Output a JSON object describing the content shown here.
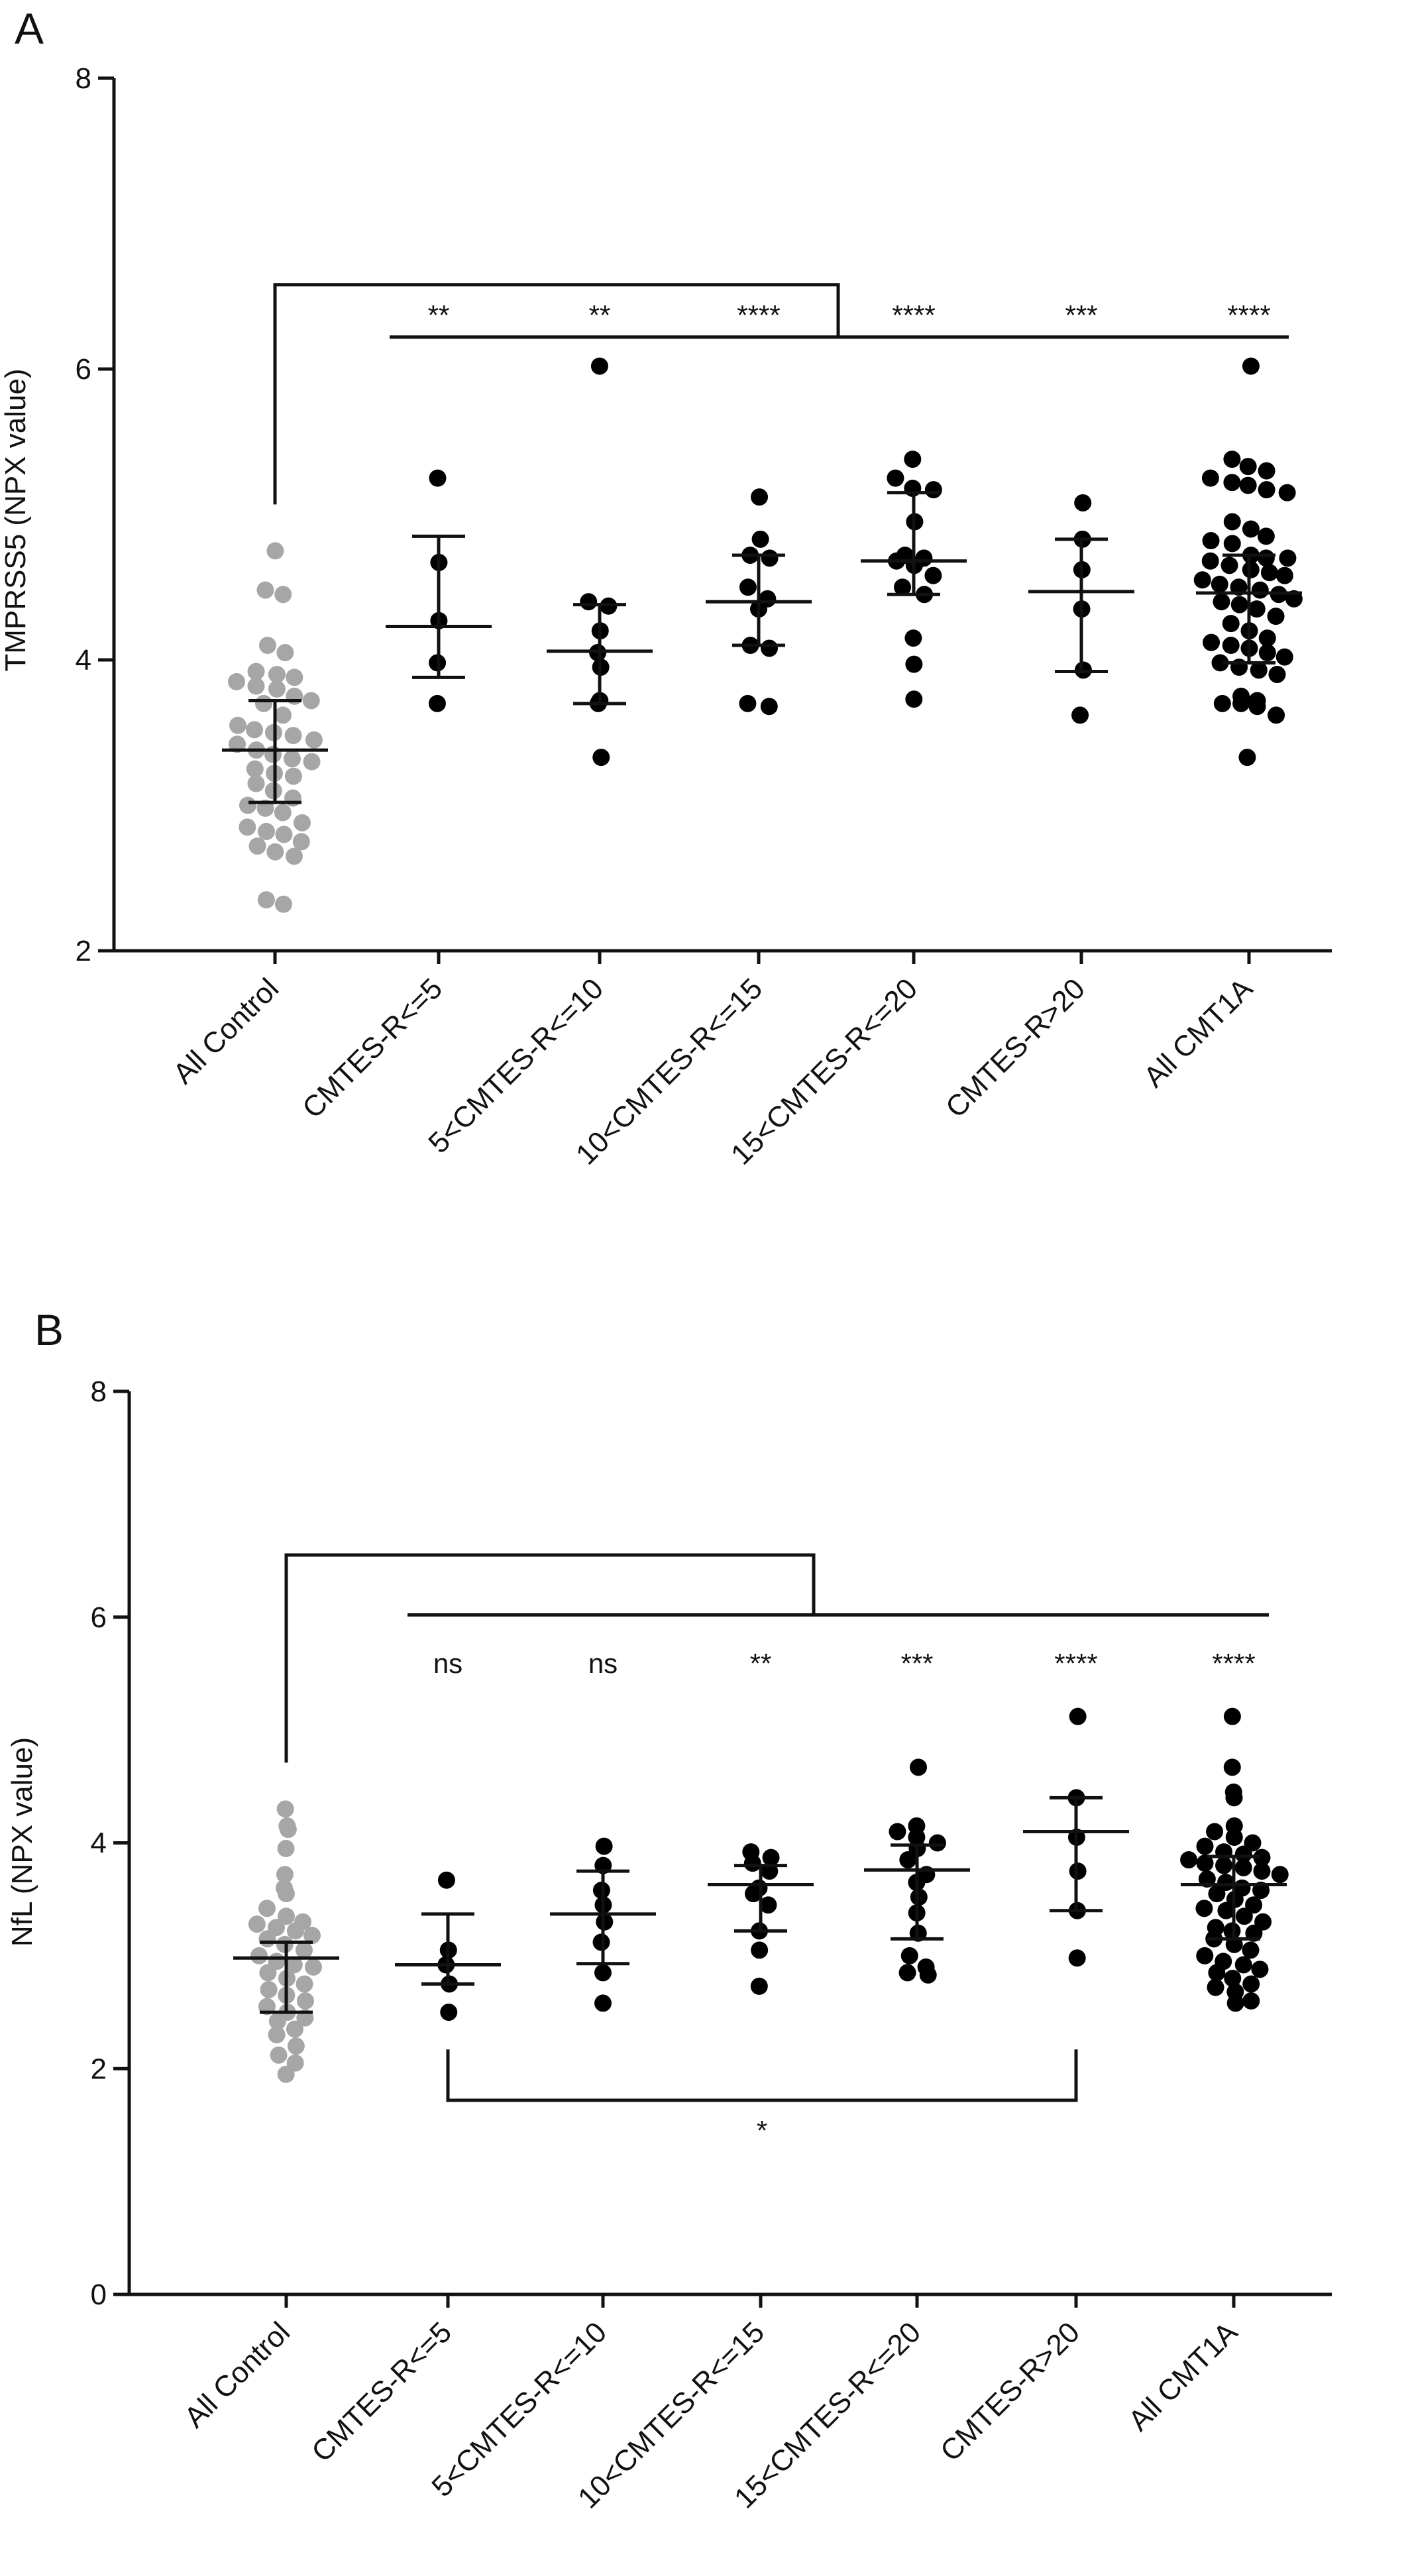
{
  "chart_data": [
    {
      "panel": "A",
      "type": "scatter",
      "ylabel": "TMPRSS5 (NPX value)",
      "ylim": [
        2,
        8
      ],
      "yticks": [
        2,
        4,
        6,
        8
      ],
      "categories": [
        "All Control",
        "CMTES-R<=5",
        "5<CMTES-R<=10",
        "10<CMTES-R<=15",
        "15<CMTES-R<=20",
        "CMTES-R>20",
        "All CMT1A"
      ],
      "colors": [
        "#a6a6a6",
        "#000000",
        "#000000",
        "#000000",
        "#000000",
        "#000000",
        "#000000"
      ],
      "groups": [
        {
          "points": [
            4.75,
            4.48,
            4.45,
            4.1,
            4.05,
            3.92,
            3.9,
            3.88,
            3.85,
            3.82,
            3.8,
            3.75,
            3.72,
            3.7,
            3.62,
            3.55,
            3.52,
            3.5,
            3.48,
            3.45,
            3.42,
            3.38,
            3.35,
            3.32,
            3.3,
            3.25,
            3.22,
            3.2,
            3.15,
            3.1,
            3.05,
            3.0,
            2.98,
            2.95,
            2.88,
            2.85,
            2.82,
            2.8,
            2.75,
            2.72,
            2.68,
            2.65,
            2.35,
            2.32
          ],
          "median": 3.38,
          "q1": 3.02,
          "q3": 3.72
        },
        {
          "points": [
            5.25,
            4.67,
            4.27,
            3.98,
            3.7
          ],
          "median": 4.23,
          "q1": 3.88,
          "q3": 4.85
        },
        {
          "points": [
            6.02,
            4.4,
            4.37,
            4.2,
            4.05,
            3.95,
            3.72,
            3.7,
            3.33
          ],
          "median": 4.06,
          "q1": 3.7,
          "q3": 4.38
        },
        {
          "points": [
            5.12,
            4.83,
            4.72,
            4.7,
            4.5,
            4.42,
            4.35,
            4.1,
            4.08,
            3.7,
            3.68
          ],
          "median": 4.4,
          "q1": 4.1,
          "q3": 4.72
        },
        {
          "points": [
            5.38,
            5.25,
            5.18,
            5.17,
            4.95,
            4.72,
            4.7,
            4.68,
            4.65,
            4.58,
            4.5,
            4.45,
            4.15,
            3.97,
            3.73
          ],
          "median": 4.68,
          "q1": 4.45,
          "q3": 5.15
        },
        {
          "points": [
            5.08,
            4.83,
            4.62,
            4.35,
            3.93,
            3.62
          ],
          "median": 4.47,
          "q1": 3.92,
          "q3": 4.83
        },
        {
          "points": [
            6.02,
            5.38,
            5.33,
            5.3,
            5.25,
            5.22,
            5.2,
            5.17,
            5.15,
            4.95,
            4.9,
            4.85,
            4.82,
            4.8,
            4.72,
            4.7,
            4.7,
            4.68,
            4.65,
            4.62,
            4.6,
            4.58,
            4.55,
            4.52,
            4.5,
            4.48,
            4.45,
            4.42,
            4.4,
            4.38,
            4.35,
            4.3,
            4.25,
            4.2,
            4.15,
            4.12,
            4.1,
            4.08,
            4.05,
            4.02,
            3.98,
            3.95,
            3.93,
            3.9,
            3.75,
            3.72,
            3.7,
            3.7,
            3.68,
            3.62,
            3.33
          ],
          "median": 4.46,
          "q1": 3.98,
          "q3": 4.72
        }
      ],
      "significance": [
        "**",
        "**",
        "****",
        "****",
        "***",
        "****"
      ],
      "bracket_levels": [
        6.58,
        6.22
      ],
      "lower_bracket": null
    },
    {
      "panel": "B",
      "type": "scatter",
      "ylabel": "NfL  (NPX value)",
      "ylim": [
        0,
        8
      ],
      "yticks": [
        0,
        2,
        4,
        6,
        8
      ],
      "categories": [
        "All Control",
        "CMTES-R<=5",
        "5<CMTES-R<=10",
        "10<CMTES-R<=15",
        "15<CMTES-R<=20",
        "CMTES-R>20",
        "All CMT1A"
      ],
      "colors": [
        "#a6a6a6",
        "#000000",
        "#000000",
        "#000000",
        "#000000",
        "#000000",
        "#000000"
      ],
      "groups": [
        {
          "points": [
            4.3,
            4.15,
            4.12,
            3.95,
            3.72,
            3.6,
            3.55,
            3.42,
            3.35,
            3.3,
            3.28,
            3.25,
            3.22,
            3.18,
            3.15,
            3.1,
            3.05,
            3.0,
            2.95,
            2.92,
            2.9,
            2.85,
            2.8,
            2.75,
            2.7,
            2.65,
            2.6,
            2.55,
            2.5,
            2.45,
            2.42,
            2.35,
            2.3,
            2.2,
            2.12,
            2.05,
            1.95
          ],
          "median": 2.98,
          "q1": 2.5,
          "q3": 3.12
        },
        {
          "points": [
            3.67,
            3.05,
            2.92,
            2.75,
            2.5
          ],
          "median": 2.92,
          "q1": 2.75,
          "q3": 3.37
        },
        {
          "points": [
            3.97,
            3.8,
            3.58,
            3.45,
            3.3,
            3.12,
            2.85,
            2.58
          ],
          "median": 3.37,
          "q1": 2.93,
          "q3": 3.75
        },
        {
          "points": [
            3.92,
            3.87,
            3.82,
            3.75,
            3.6,
            3.55,
            3.45,
            3.22,
            3.05,
            2.73
          ],
          "median": 3.63,
          "q1": 3.22,
          "q3": 3.8
        },
        {
          "points": [
            4.67,
            4.15,
            4.1,
            4.05,
            4.0,
            3.95,
            3.85,
            3.72,
            3.65,
            3.52,
            3.38,
            3.2,
            3.0,
            2.9,
            2.85,
            2.83
          ],
          "median": 3.76,
          "q1": 3.15,
          "q3": 3.98
        },
        {
          "points": [
            5.12,
            4.4,
            4.05,
            3.75,
            3.4,
            2.98
          ],
          "median": 4.1,
          "q1": 3.4,
          "q3": 4.4
        },
        {
          "points": [
            5.12,
            4.67,
            4.45,
            4.4,
            4.15,
            4.1,
            4.05,
            4.0,
            3.97,
            3.92,
            3.9,
            3.87,
            3.85,
            3.82,
            3.8,
            3.78,
            3.75,
            3.72,
            3.68,
            3.65,
            3.6,
            3.58,
            3.55,
            3.5,
            3.45,
            3.42,
            3.4,
            3.35,
            3.3,
            3.25,
            3.22,
            3.2,
            3.15,
            3.1,
            3.05,
            3.0,
            2.95,
            2.92,
            2.88,
            2.85,
            2.8,
            2.75,
            2.72,
            2.68,
            2.6,
            2.58
          ],
          "median": 3.63,
          "q1": 3.15,
          "q3": 3.88
        }
      ],
      "significance": [
        "ns",
        "ns",
        "**",
        "***",
        "****",
        "****"
      ],
      "bracket_levels": [
        6.55,
        6.02
      ],
      "lower_bracket": {
        "from": 1,
        "to": 5,
        "level": 1.72,
        "top": 2.17,
        "label": "*"
      }
    }
  ]
}
